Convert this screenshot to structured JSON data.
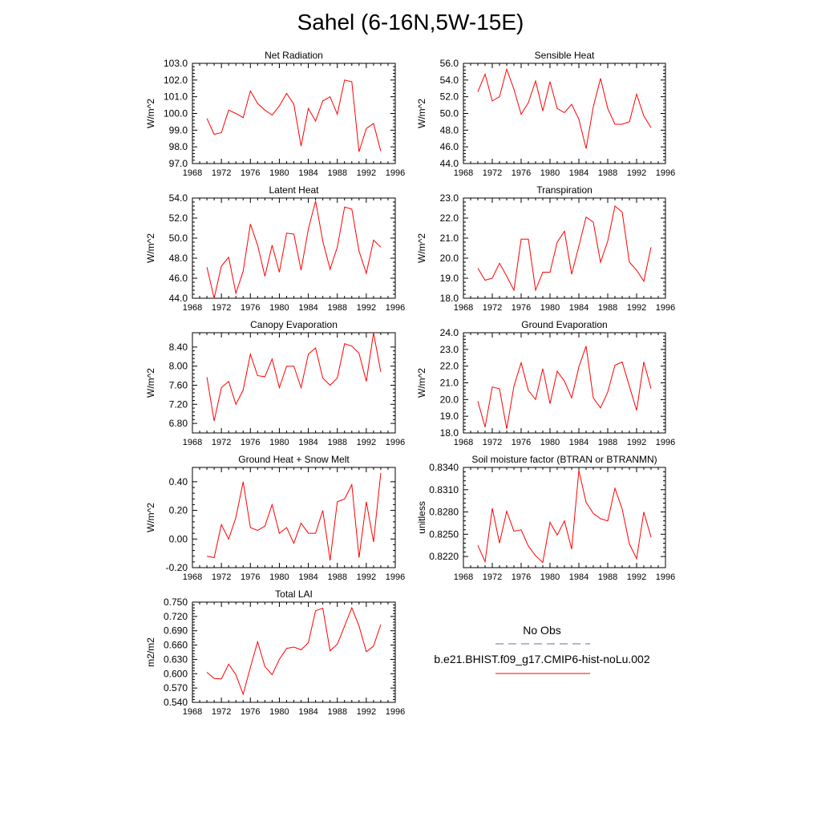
{
  "title": "Sahel (6-16N,5W-15E)",
  "colors": {
    "model": "#ff0000",
    "obs": "#6a6aa8"
  },
  "legend": {
    "obs_label": "No Obs",
    "model_label": "b.e21.BHIST.f09_g17.CMIP6-hist-noLu.002"
  },
  "chart_data": [
    {
      "type": "line",
      "title": "Net Radiation",
      "ylabel": "W/m^2",
      "xlim": [
        1968,
        1996
      ],
      "xticks": [
        "1968",
        "1972",
        "1976",
        "1980",
        "1984",
        "1988",
        "1992",
        "1996"
      ],
      "ylim": [
        97.0,
        103.0
      ],
      "yticks": [
        "97.0",
        "98.0",
        "99.0",
        "100.0",
        "101.0",
        "102.0",
        "103.0"
      ],
      "x": [
        1970,
        1971,
        1972,
        1973,
        1974,
        1975,
        1976,
        1977,
        1978,
        1979,
        1980,
        1981,
        1982,
        1983,
        1984,
        1985,
        1986,
        1987,
        1988,
        1989,
        1990,
        1991,
        1992,
        1993,
        1994
      ],
      "values": [
        99.7,
        98.75,
        98.85,
        100.2,
        100.0,
        99.75,
        101.35,
        100.6,
        100.2,
        99.9,
        100.45,
        101.2,
        100.55,
        98.05,
        100.3,
        99.55,
        100.75,
        101.0,
        99.95,
        102.0,
        101.9,
        97.7,
        99.1,
        99.4,
        97.75
      ]
    },
    {
      "type": "line",
      "title": "Sensible Heat",
      "ylabel": "W/m^2",
      "xlim": [
        1968,
        1996
      ],
      "xticks": [
        "1968",
        "1972",
        "1976",
        "1980",
        "1984",
        "1988",
        "1992",
        "1996"
      ],
      "ylim": [
        44.0,
        56.0
      ],
      "yticks": [
        "44.0",
        "46.0",
        "48.0",
        "50.0",
        "52.0",
        "54.0",
        "56.0"
      ],
      "x": [
        1970,
        1971,
        1972,
        1973,
        1974,
        1975,
        1976,
        1977,
        1978,
        1979,
        1980,
        1981,
        1982,
        1983,
        1984,
        1985,
        1986,
        1987,
        1988,
        1989,
        1990,
        1991,
        1992,
        1993,
        1994
      ],
      "values": [
        52.6,
        54.7,
        51.5,
        52.0,
        55.3,
        52.9,
        49.9,
        51.3,
        53.9,
        50.3,
        53.8,
        50.6,
        50.1,
        51.1,
        49.3,
        45.8,
        50.8,
        54.2,
        50.6,
        48.7,
        48.7,
        49.0,
        52.3,
        49.7,
        48.3
      ]
    },
    {
      "type": "line",
      "title": "Latent Heat",
      "ylabel": "W/m^2",
      "xlim": [
        1968,
        1996
      ],
      "xticks": [
        "1968",
        "1972",
        "1976",
        "1980",
        "1984",
        "1988",
        "1992",
        "1996"
      ],
      "ylim": [
        44.0,
        54.0
      ],
      "yticks": [
        "44.0",
        "46.0",
        "48.0",
        "50.0",
        "52.0",
        "54.0"
      ],
      "x": [
        1970,
        1971,
        1972,
        1973,
        1974,
        1975,
        1976,
        1977,
        1978,
        1979,
        1980,
        1981,
        1982,
        1983,
        1984,
        1985,
        1986,
        1987,
        1988,
        1989,
        1990,
        1991,
        1992,
        1993,
        1994
      ],
      "values": [
        47.1,
        44.0,
        47.2,
        48.1,
        44.5,
        46.7,
        51.4,
        49.3,
        46.2,
        49.3,
        46.6,
        50.5,
        50.4,
        46.8,
        50.9,
        53.7,
        49.7,
        46.9,
        49.1,
        53.1,
        52.9,
        48.7,
        46.5,
        49.8,
        49.1
      ]
    },
    {
      "type": "line",
      "title": "Transpiration",
      "ylabel": "W/m^2",
      "xlim": [
        1968,
        1996
      ],
      "xticks": [
        "1968",
        "1972",
        "1976",
        "1980",
        "1984",
        "1988",
        "1992",
        "1996"
      ],
      "ylim": [
        18.0,
        23.0
      ],
      "yticks": [
        "18.0",
        "19.0",
        "20.0",
        "21.0",
        "22.0",
        "23.0"
      ],
      "x": [
        1970,
        1971,
        1972,
        1973,
        1974,
        1975,
        1976,
        1977,
        1978,
        1979,
        1980,
        1981,
        1982,
        1983,
        1984,
        1985,
        1986,
        1987,
        1988,
        1989,
        1990,
        1991,
        1992,
        1993,
        1994
      ],
      "values": [
        19.5,
        18.9,
        19.0,
        19.75,
        19.1,
        18.4,
        20.95,
        20.95,
        18.4,
        19.3,
        19.3,
        20.8,
        21.35,
        19.2,
        20.6,
        22.05,
        21.8,
        19.8,
        20.85,
        22.6,
        22.3,
        19.8,
        19.4,
        18.85,
        20.55
      ]
    },
    {
      "type": "line",
      "title": "Canopy Evaporation",
      "ylabel": "W/m^2",
      "xlim": [
        1968,
        1996
      ],
      "xticks": [
        "1968",
        "1972",
        "1976",
        "1980",
        "1984",
        "1988",
        "1992",
        "1996"
      ],
      "ylim": [
        6.6,
        8.7
      ],
      "yticks": [
        "6.80",
        "7.20",
        "7.60",
        "8.00",
        "8.40"
      ],
      "ytick_values": [
        6.8,
        7.2,
        7.6,
        8.0,
        8.4
      ],
      "x": [
        1970,
        1971,
        1972,
        1973,
        1974,
        1975,
        1976,
        1977,
        1978,
        1979,
        1980,
        1981,
        1982,
        1983,
        1984,
        1985,
        1986,
        1987,
        1988,
        1989,
        1990,
        1991,
        1992,
        1993,
        1994
      ],
      "values": [
        7.77,
        6.85,
        7.55,
        7.68,
        7.2,
        7.5,
        8.25,
        7.8,
        7.78,
        8.15,
        7.55,
        8.0,
        8.0,
        7.55,
        8.25,
        8.38,
        7.75,
        7.6,
        7.75,
        8.47,
        8.42,
        8.27,
        7.68,
        8.7,
        7.88
      ]
    },
    {
      "type": "line",
      "title": "Ground Evaporation",
      "ylabel": "W/m^2",
      "xlim": [
        1968,
        1996
      ],
      "xticks": [
        "1968",
        "1972",
        "1976",
        "1980",
        "1984",
        "1988",
        "1992",
        "1996"
      ],
      "ylim": [
        18.0,
        24.0
      ],
      "yticks": [
        "18.0",
        "19.0",
        "20.0",
        "21.0",
        "22.0",
        "23.0",
        "24.0"
      ],
      "x": [
        1970,
        1971,
        1972,
        1973,
        1974,
        1975,
        1976,
        1977,
        1978,
        1979,
        1980,
        1981,
        1982,
        1983,
        1984,
        1985,
        1986,
        1987,
        1988,
        1989,
        1990,
        1991,
        1992,
        1993,
        1994
      ],
      "values": [
        19.9,
        18.35,
        20.75,
        20.65,
        18.25,
        20.8,
        22.2,
        20.55,
        20.0,
        21.85,
        19.75,
        21.7,
        21.1,
        20.1,
        21.95,
        23.2,
        20.1,
        19.5,
        20.45,
        22.05,
        22.25,
        20.8,
        19.35,
        22.25,
        20.65
      ]
    },
    {
      "type": "line",
      "title": "Ground Heat + Snow Melt",
      "ylabel": "W/m^2",
      "xlim": [
        1968,
        1996
      ],
      "xticks": [
        "1968",
        "1972",
        "1976",
        "1980",
        "1984",
        "1988",
        "1992",
        "1996"
      ],
      "ylim": [
        -0.2,
        0.5
      ],
      "yticks": [
        "-0.20",
        "0.00",
        "0.20",
        "0.40"
      ],
      "ytick_values": [
        -0.2,
        0.0,
        0.2,
        0.4
      ],
      "x": [
        1970,
        1971,
        1972,
        1973,
        1974,
        1975,
        1976,
        1977,
        1978,
        1979,
        1980,
        1981,
        1982,
        1983,
        1984,
        1985,
        1986,
        1987,
        1988,
        1989,
        1990,
        1991,
        1992,
        1993,
        1994
      ],
      "values": [
        -0.12,
        -0.13,
        0.1,
        0.0,
        0.15,
        0.4,
        0.08,
        0.06,
        0.09,
        0.24,
        0.04,
        0.08,
        -0.03,
        0.11,
        0.04,
        0.04,
        0.2,
        -0.15,
        0.26,
        0.28,
        0.38,
        -0.13,
        0.26,
        -0.02,
        0.46
      ]
    },
    {
      "type": "line",
      "title": "Soil moisture factor (BTRAN or BTRANMN)",
      "ylabel": "unitless",
      "xlim": [
        1968,
        1996
      ],
      "xticks": [
        "1968",
        "1972",
        "1976",
        "1980",
        "1984",
        "1988",
        "1992",
        "1996"
      ],
      "ylim": [
        0.8205,
        0.834
      ],
      "yticks": [
        "0.8220",
        "0.8250",
        "0.8280",
        "0.8310",
        "0.8340"
      ],
      "ytick_values": [
        0.822,
        0.825,
        0.828,
        0.831,
        0.834
      ],
      "x": [
        1970,
        1971,
        1972,
        1973,
        1974,
        1975,
        1976,
        1977,
        1978,
        1979,
        1980,
        1981,
        1982,
        1983,
        1984,
        1985,
        1986,
        1987,
        1988,
        1989,
        1990,
        1991,
        1992,
        1993,
        1994
      ],
      "values": [
        0.8235,
        0.8213,
        0.8285,
        0.8238,
        0.8281,
        0.8254,
        0.8256,
        0.8234,
        0.8221,
        0.8212,
        0.8266,
        0.8249,
        0.8268,
        0.823,
        0.8336,
        0.8293,
        0.8278,
        0.8271,
        0.8268,
        0.8312,
        0.8284,
        0.8237,
        0.8217,
        0.828,
        0.8246
      ]
    },
    {
      "type": "line",
      "title": "Total LAI",
      "ylabel": "m2/m2",
      "xlim": [
        1968,
        1996
      ],
      "xticks": [
        "1968",
        "1972",
        "1976",
        "1980",
        "1984",
        "1988",
        "1992",
        "1996"
      ],
      "ylim": [
        0.54,
        0.75
      ],
      "yticks": [
        "0.540",
        "0.570",
        "0.600",
        "0.630",
        "0.660",
        "0.690",
        "0.720",
        "0.750"
      ],
      "x": [
        1970,
        1971,
        1972,
        1973,
        1974,
        1975,
        1976,
        1977,
        1978,
        1979,
        1980,
        1981,
        1982,
        1983,
        1984,
        1985,
        1986,
        1987,
        1988,
        1989,
        1990,
        1991,
        1992,
        1993,
        1994
      ],
      "values": [
        0.603,
        0.59,
        0.589,
        0.62,
        0.598,
        0.557,
        0.613,
        0.667,
        0.615,
        0.598,
        0.63,
        0.653,
        0.656,
        0.65,
        0.665,
        0.732,
        0.737,
        0.648,
        0.662,
        0.7,
        0.738,
        0.7,
        0.646,
        0.658,
        0.703
      ]
    }
  ]
}
